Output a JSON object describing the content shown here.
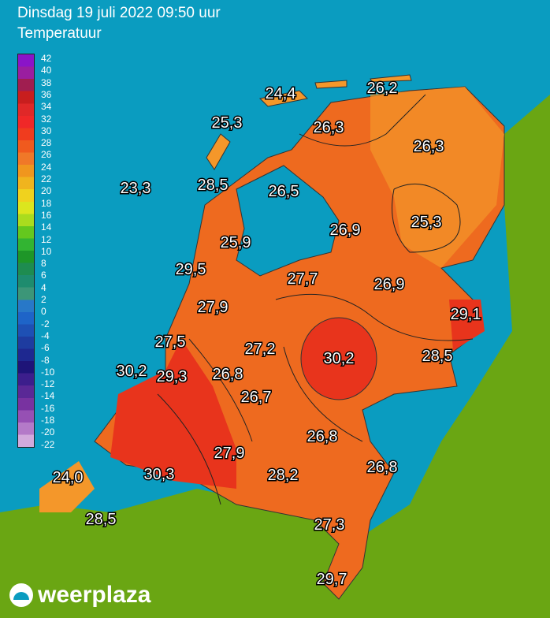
{
  "header": {
    "line1": "Dinsdag 19 juli 2022 09:50 uur",
    "line2": "Temperatuur"
  },
  "legend": {
    "labels": [
      "42",
      "40",
      "38",
      "36",
      "34",
      "32",
      "30",
      "28",
      "26",
      "24",
      "22",
      "20",
      "18",
      "16",
      "14",
      "12",
      "10",
      "8",
      "6",
      "4",
      "2",
      "0",
      "-2",
      "-4",
      "-6",
      "-8",
      "-10",
      "-12",
      "-14",
      "-16",
      "-18",
      "-20",
      "-22"
    ]
  },
  "stations": [
    "24,4",
    "26,2",
    "25,3",
    "26,3",
    "26,3",
    "23,3",
    "28,5",
    "26,5",
    "26,9",
    "25,3",
    "25,9",
    "29,5",
    "27,7",
    "26,9",
    "27,9",
    "29,1",
    "27,5",
    "27,2",
    "30,2",
    "28,5",
    "30,2",
    "29,3",
    "26,8",
    "26,7",
    "26,8",
    "27,9",
    "26,8",
    "24,0",
    "30,3",
    "28,2",
    "28,5",
    "27,3",
    "29,7"
  ],
  "brand": {
    "name": "weerplaza"
  },
  "colors": {
    "sea": "#0a9cc0",
    "land_outside": "#6aa613",
    "hot": "#e8341c",
    "warm": "#ee6a1f",
    "mild": "#f4972a"
  }
}
